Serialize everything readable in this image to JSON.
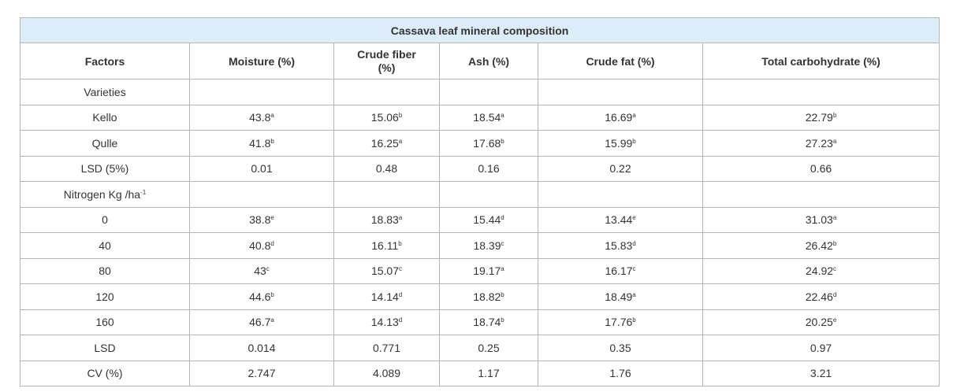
{
  "table": {
    "title": "Cassava leaf mineral composition",
    "headers": [
      "Factors",
      "Moisture (%)",
      "Crude fiber (%)",
      "Ash (%)",
      "Crude fat (%)",
      "Total carbohydrate (%)"
    ],
    "rows": [
      [
        {
          "text": "Varieties"
        }
      ],
      [
        {
          "text": "Kello"
        },
        {
          "text": "43.8",
          "sup": "a"
        },
        {
          "text": "15.06",
          "sup": "b"
        },
        {
          "text": "18.54",
          "sup": "a"
        },
        {
          "text": "16.69",
          "sup": "a"
        },
        {
          "text": "22.79",
          "sup": "b"
        }
      ],
      [
        {
          "text": "Qulle"
        },
        {
          "text": "41.8",
          "sup": "b"
        },
        {
          "text": "16.25",
          "sup": "a"
        },
        {
          "text": "17.68",
          "sup": "b"
        },
        {
          "text": "15.99",
          "sup": "b"
        },
        {
          "text": "27.23",
          "sup": "a"
        }
      ],
      [
        {
          "text": "LSD (5%)"
        },
        {
          "text": "0.01"
        },
        {
          "text": "0.48"
        },
        {
          "text": "0.16"
        },
        {
          "text": "0.22"
        },
        {
          "text": "0.66"
        }
      ],
      [
        {
          "text": "Nitrogen Kg /ha",
          "sup": "-1"
        }
      ],
      [
        {
          "text": "0"
        },
        {
          "text": "38.8",
          "sup": "e"
        },
        {
          "text": "18.83",
          "sup": "a"
        },
        {
          "text": "15.44",
          "sup": "d"
        },
        {
          "text": "13.44",
          "sup": "e"
        },
        {
          "text": "31.03",
          "sup": "a"
        }
      ],
      [
        {
          "text": "40"
        },
        {
          "text": "40.8",
          "sup": "d"
        },
        {
          "text": "16.11",
          "sup": "b"
        },
        {
          "text": "18.39",
          "sup": "c"
        },
        {
          "text": "15.83",
          "sup": "d"
        },
        {
          "text": "26.42",
          "sup": "b"
        }
      ],
      [
        {
          "text": "80"
        },
        {
          "text": "43",
          "sup": "c"
        },
        {
          "text": "15.07",
          "sup": "c"
        },
        {
          "text": "19.17",
          "sup": "a"
        },
        {
          "text": "16.17",
          "sup": "c"
        },
        {
          "text": "24.92",
          "sup": "c"
        }
      ],
      [
        {
          "text": "120"
        },
        {
          "text": "44.6",
          "sup": "b"
        },
        {
          "text": "14.14",
          "sup": "d"
        },
        {
          "text": "18.82",
          "sup": "b"
        },
        {
          "text": "18.49",
          "sup": "a"
        },
        {
          "text": "22.46",
          "sup": "d"
        }
      ],
      [
        {
          "text": "160"
        },
        {
          "text": "46.7",
          "sup": "a"
        },
        {
          "text": "14.13",
          "sup": "d"
        },
        {
          "text": "18.74",
          "sup": "b"
        },
        {
          "text": "17.76",
          "sup": "b"
        },
        {
          "text": "20.25",
          "sup": "e"
        }
      ],
      [
        {
          "text": "LSD"
        },
        {
          "text": "0.014"
        },
        {
          "text": "0.771"
        },
        {
          "text": "0.25"
        },
        {
          "text": "0.35"
        },
        {
          "text": "0.97"
        }
      ],
      [
        {
          "text": "CV (%)"
        },
        {
          "text": "2.747"
        },
        {
          "text": "4.089"
        },
        {
          "text": "1.17"
        },
        {
          "text": "1.76"
        },
        {
          "text": "3.21"
        }
      ]
    ]
  }
}
